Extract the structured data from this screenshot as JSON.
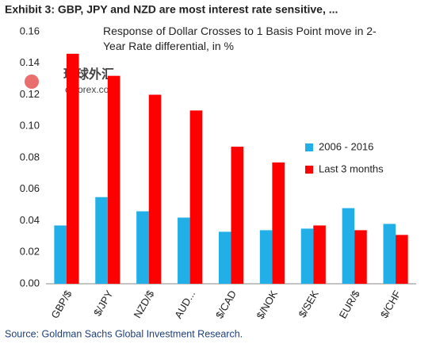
{
  "chart_data": {
    "type": "bar",
    "title": "Exhibit 3: GBP, JPY and NZD are most interest rate sensitive, ...",
    "subtitle": "Response of Dollar Crosses to 1 Basis Point move in 2-Year Rate differential, in %",
    "source": "Source: Goldman Sachs Global Investment Research.",
    "watermark": [
      "环球外汇",
      "cnforex.com"
    ],
    "categories": [
      "GBP/$",
      "$/JPY",
      "NZD/$",
      "AUD...",
      "$/CAD",
      "$/NOK",
      "$/SEK",
      "EUR/$",
      "$/CHF"
    ],
    "series": [
      {
        "name": "2006 - 2016",
        "color": "#22aee6",
        "values": [
          0.037,
          0.055,
          0.046,
          0.042,
          0.033,
          0.034,
          0.035,
          0.048,
          0.038
        ]
      },
      {
        "name": "Last 3 months",
        "color": "#ff0000",
        "values": [
          0.146,
          0.132,
          0.12,
          0.11,
          0.087,
          0.077,
          0.037,
          0.034,
          0.031
        ]
      }
    ],
    "ylim": [
      0,
      0.16
    ],
    "yticks": [
      {
        "value": 0,
        "label": "0.00"
      },
      {
        "value": 0.02,
        "label": "0.02"
      },
      {
        "value": 0.04,
        "label": "0.04"
      },
      {
        "value": 0.06,
        "label": "0.06"
      },
      {
        "value": 0.08,
        "label": "0.08"
      },
      {
        "value": 0.1,
        "label": "0.10"
      },
      {
        "value": 0.12,
        "label": "0.12"
      },
      {
        "value": 0.14,
        "label": "0.14"
      },
      {
        "value": 0.16,
        "label": "0.16"
      }
    ],
    "grid": false
  }
}
